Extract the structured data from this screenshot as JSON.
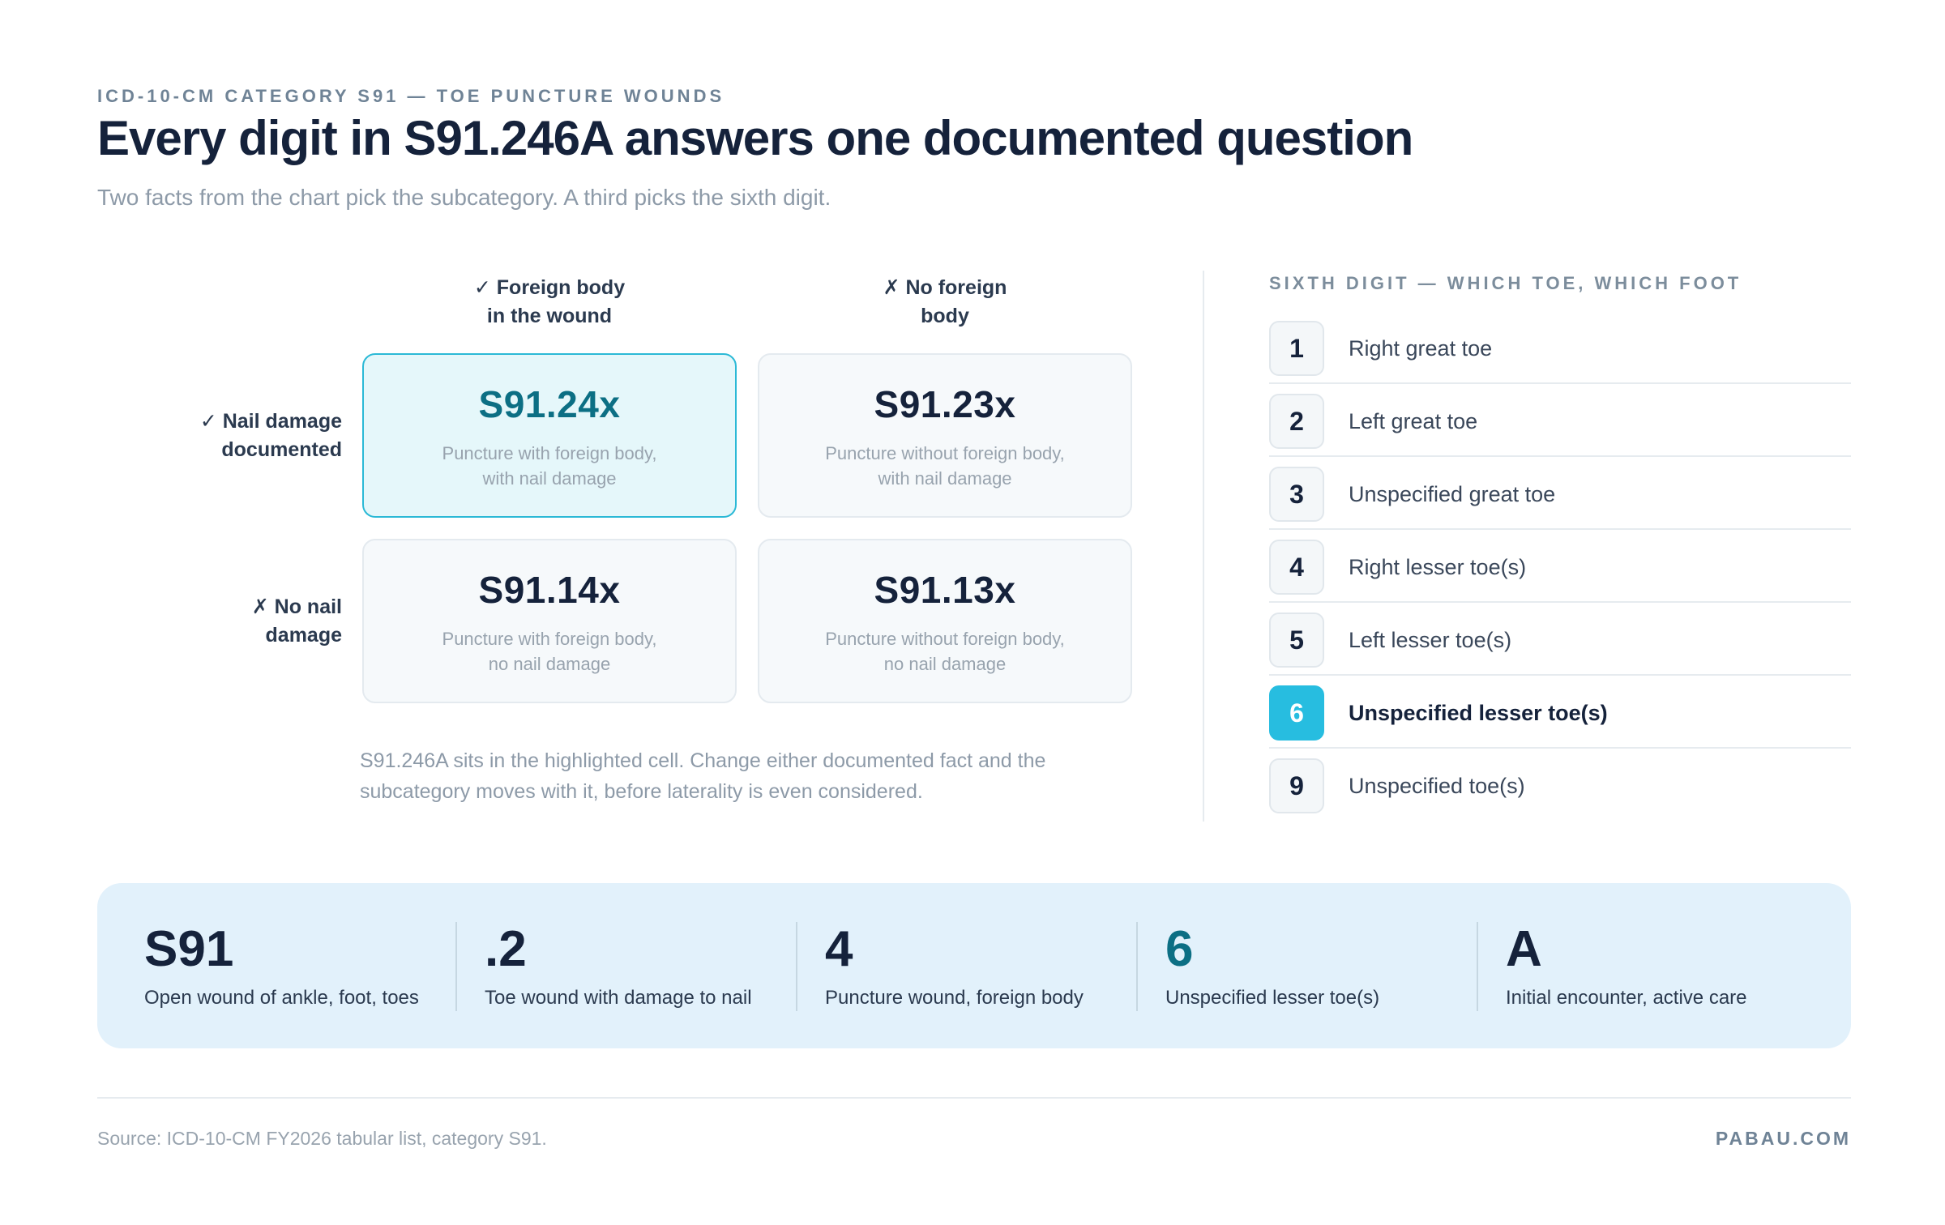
{
  "header": {
    "eyebrow": "ICD-10-CM CATEGORY S91 — TOE PUNCTURE WOUNDS",
    "title": "Every digit in S91.246A answers one documented question",
    "subtitle": "Two facts from the chart pick the subcategory. A third picks the sixth digit."
  },
  "matrix": {
    "col_headers": [
      {
        "line1": "✓ Foreign body",
        "line2": "in the wound"
      },
      {
        "line1": "✗ No foreign",
        "line2": "body"
      }
    ],
    "row_headers": [
      {
        "line1": "✓ Nail damage",
        "line2": "documented"
      },
      {
        "line1": "✗ No nail",
        "line2": "damage"
      }
    ],
    "cells": [
      {
        "code": "S91.24x",
        "desc1": "Puncture with foreign body,",
        "desc2": "with nail damage",
        "highlighted": true
      },
      {
        "code": "S91.23x",
        "desc1": "Puncture without foreign body,",
        "desc2": "with nail damage",
        "highlighted": false
      },
      {
        "code": "S91.14x",
        "desc1": "Puncture with foreign body,",
        "desc2": "no nail damage",
        "highlighted": false
      },
      {
        "code": "S91.13x",
        "desc1": "Puncture without foreign body,",
        "desc2": "no nail damage",
        "highlighted": false
      }
    ],
    "note_line1": "S91.246A sits in the highlighted cell. Change either documented fact and the",
    "note_line2": "subcategory moves with it, before laterality is even considered."
  },
  "sixth_digit": {
    "title": "SIXTH DIGIT — WHICH TOE, WHICH FOOT",
    "items": [
      {
        "digit": "1",
        "label": "Right great toe"
      },
      {
        "digit": "2",
        "label": "Left great toe"
      },
      {
        "digit": "3",
        "label": "Unspecified great toe"
      },
      {
        "digit": "4",
        "label": "Right lesser toe(s)"
      },
      {
        "digit": "5",
        "label": "Left lesser toe(s)"
      },
      {
        "digit": "6",
        "label": "Unspecified lesser toe(s)",
        "selected": true
      },
      {
        "digit": "9",
        "label": "Unspecified toe(s)"
      }
    ]
  },
  "breakdown": [
    {
      "part": "S91",
      "label": "Open wound of ankle, foot, toes"
    },
    {
      "part": ".2",
      "label": "Toe wound with damage to nail"
    },
    {
      "part": "4",
      "label": "Puncture wound, foreign body"
    },
    {
      "part": "6",
      "label": "Unspecified lesser toe(s)",
      "accent": true
    },
    {
      "part": "A",
      "label": "Initial encounter, active care"
    }
  ],
  "footer": {
    "source": "Source: ICD-10-CM FY2026 tabular list, category S91.",
    "brand": "PABAU.COM"
  },
  "colors": {
    "accent": "#27bde0",
    "accent_dark": "#0c6f84",
    "band": "#e2f1fb"
  }
}
